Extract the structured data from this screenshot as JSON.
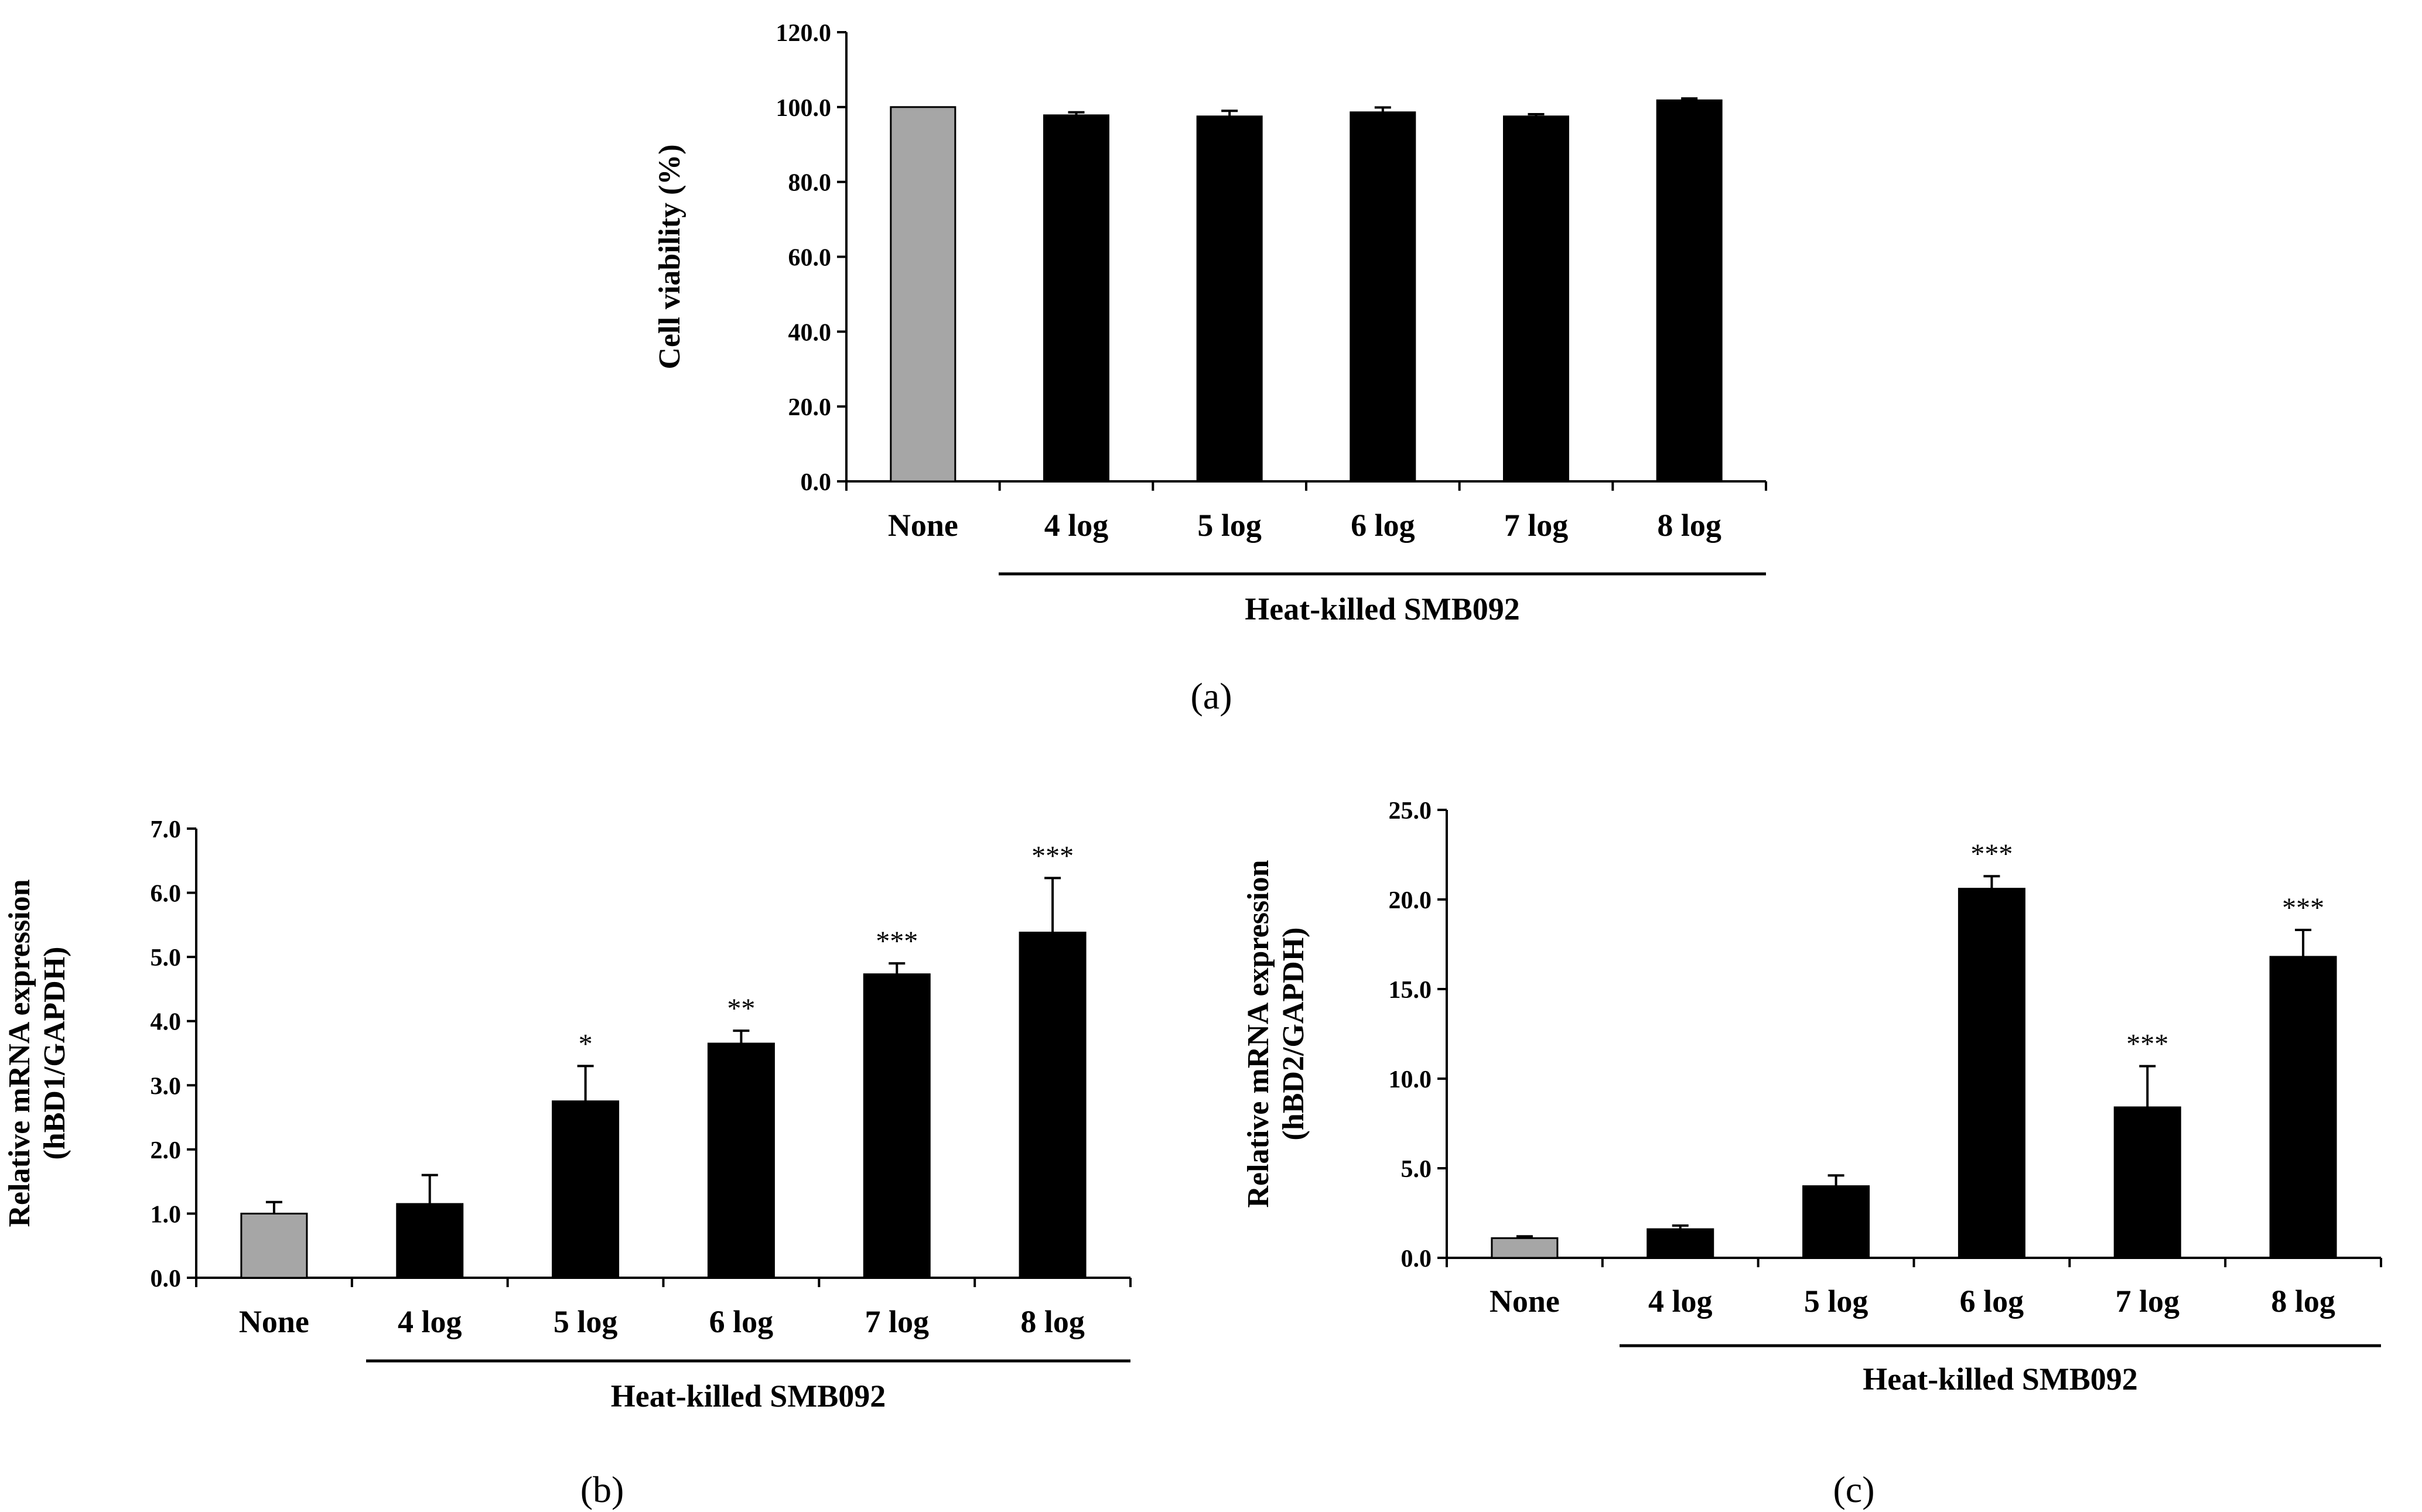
{
  "chart_data": [
    {
      "id": "a",
      "type": "bar",
      "panel_label": "(a)",
      "ylabel": "Cell viability (%)",
      "ylabel_lines": [
        "Cell viability (%)"
      ],
      "ylim": [
        0,
        120
      ],
      "yticks": [
        "0.0",
        "20.0",
        "40.0",
        "60.0",
        "80.0",
        "100.0",
        "120.0"
      ],
      "categories": [
        "None",
        "4 log",
        "5 log",
        "6 log",
        "7 log",
        "8 log"
      ],
      "values": [
        100.0,
        97.8,
        97.5,
        98.6,
        97.5,
        101.8
      ],
      "errors": [
        0,
        0.8,
        1.5,
        1.3,
        0.6,
        0.5
      ],
      "significance": [
        "",
        "",
        "",
        "",
        "",
        ""
      ],
      "bar_colors": [
        "#a6a6a6",
        "#000000",
        "#000000",
        "#000000",
        "#000000",
        "#000000"
      ],
      "group_label": "Heat-killed SMB092"
    },
    {
      "id": "b",
      "type": "bar",
      "panel_label": "(b)",
      "ylabel": "Relative mRNA expression (hBD1/GAPDH)",
      "ylabel_lines": [
        "Relative mRNA expression",
        "(hBD1/GAPDH)"
      ],
      "ylim": [
        0,
        7
      ],
      "yticks": [
        "0.0",
        "1.0",
        "2.0",
        "3.0",
        "4.0",
        "5.0",
        "6.0",
        "7.0"
      ],
      "categories": [
        "None",
        "4 log",
        "5 log",
        "6 log",
        "7 log",
        "8 log"
      ],
      "values": [
        1.0,
        1.15,
        2.75,
        3.65,
        4.73,
        5.38
      ],
      "errors": [
        0.18,
        0.45,
        0.55,
        0.2,
        0.17,
        0.85
      ],
      "significance": [
        "",
        "",
        "*",
        "**",
        "***",
        "***"
      ],
      "bar_colors": [
        "#a6a6a6",
        "#000000",
        "#000000",
        "#000000",
        "#000000",
        "#000000"
      ],
      "group_label": "Heat-killed SMB092"
    },
    {
      "id": "c",
      "type": "bar",
      "panel_label": "(c)",
      "ylabel": "Relative mRNA expression (hBD2/GAPDH)",
      "ylabel_lines": [
        "Relative mRNA expression",
        "(hBD2/GAPDH)"
      ],
      "ylim": [
        0,
        25
      ],
      "yticks": [
        "0.0",
        "5.0",
        "10.0",
        "15.0",
        "20.0",
        "25.0"
      ],
      "categories": [
        "None",
        "4 log",
        "5 log",
        "6 log",
        "7 log",
        "8 log"
      ],
      "values": [
        1.1,
        1.6,
        4.0,
        20.6,
        8.4,
        16.8
      ],
      "errors": [
        0.1,
        0.2,
        0.6,
        0.7,
        2.3,
        1.5
      ],
      "significance": [
        "",
        "",
        "",
        "***",
        "***",
        "***"
      ],
      "bar_colors": [
        "#a6a6a6",
        "#000000",
        "#000000",
        "#000000",
        "#000000",
        "#000000"
      ],
      "group_label": "Heat-killed SMB092"
    }
  ]
}
